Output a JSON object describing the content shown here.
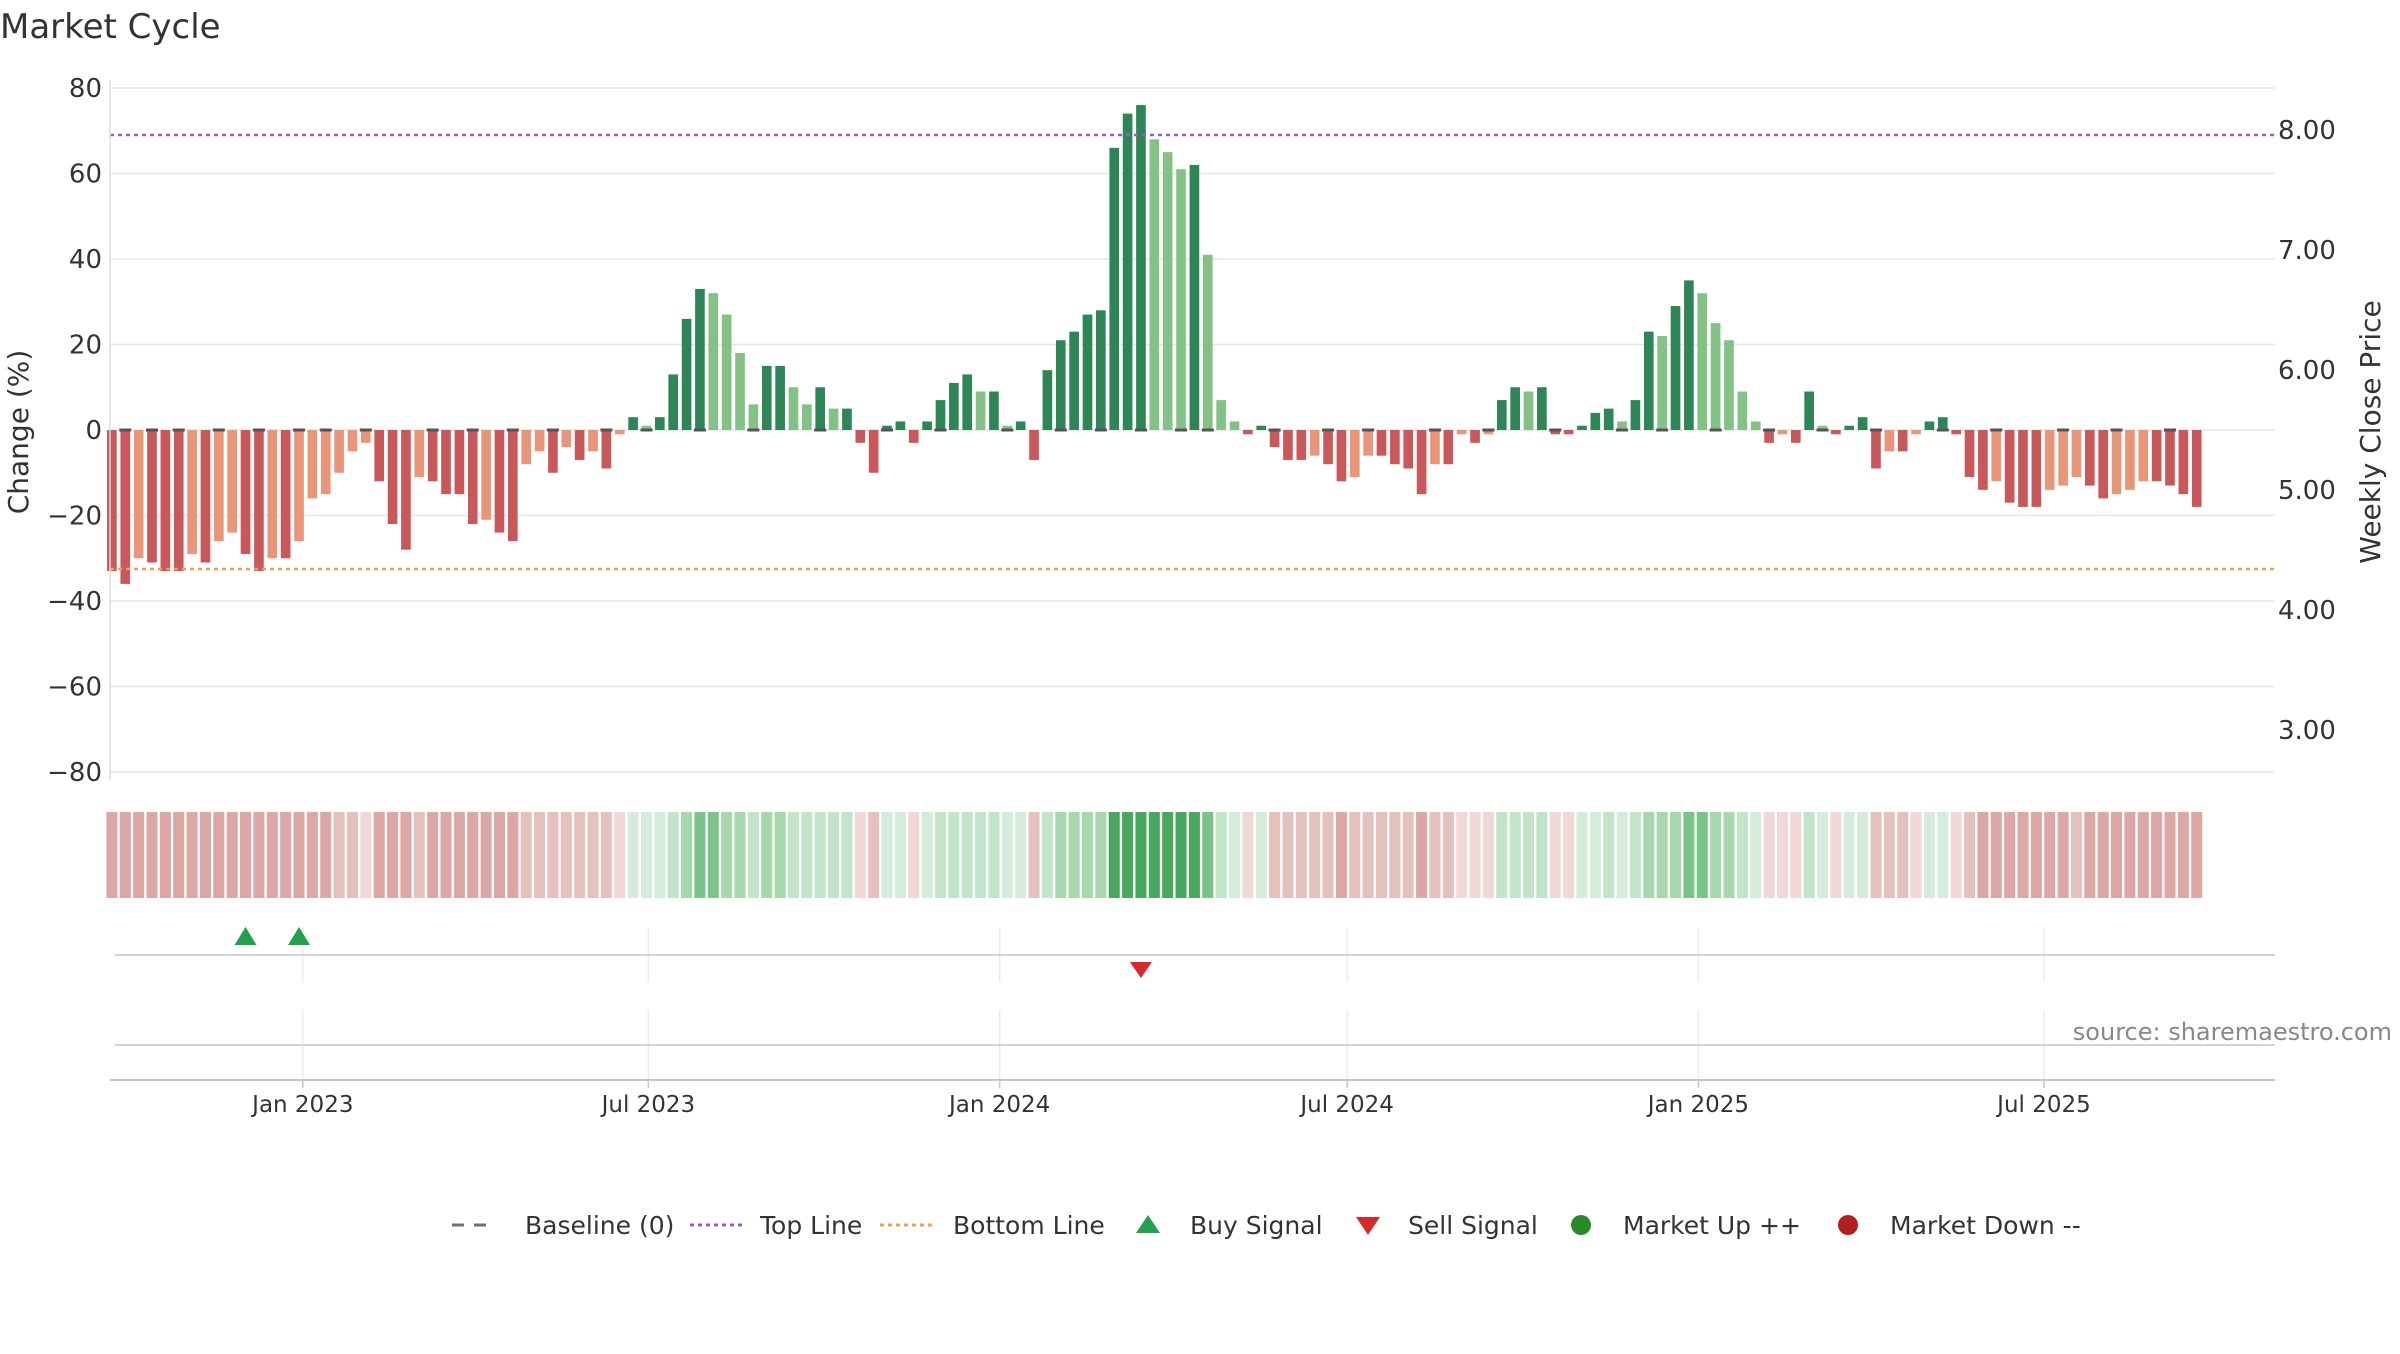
{
  "chart_data": {
    "type": "bar",
    "title": "Market Cycle",
    "ylabel": "Change (%)",
    "y2label": "Weekly Close Price",
    "ylim": [
      -80,
      80
    ],
    "yticks": [
      80,
      60,
      40,
      20,
      0,
      -20,
      -40,
      -60,
      -80
    ],
    "ytick_labels": [
      "80",
      "60",
      "40",
      "20",
      "0",
      "−20",
      "−40",
      "−60",
      "−80"
    ],
    "y2lim": [
      2.65,
      8.35
    ],
    "y2ticks": [
      8.0,
      7.0,
      6.0,
      5.0,
      4.0,
      3.0
    ],
    "y2tick_labels": [
      "8.00",
      "7.00",
      "6.00",
      "5.00",
      "4.00",
      "3.00"
    ],
    "xlim": [
      "2022-09-22",
      "2025-10-30"
    ],
    "xticks": [
      "2023-01-01",
      "2023-07-01",
      "2024-01-01",
      "2024-07-01",
      "2025-01-01",
      "2025-07-01"
    ],
    "xtick_labels": [
      "Jan 2023",
      "Jul 2023",
      "Jan 2024",
      "Jul 2024",
      "Jan 2025",
      "Jul 2025"
    ],
    "first_week": "2022-09-23",
    "week_step_days": 7,
    "values": [
      -33,
      -36,
      -30,
      -31,
      -33,
      -33,
      -29,
      -31,
      -26,
      -24,
      -29,
      -33,
      -30,
      -30,
      -26,
      -16,
      -15,
      -10,
      -5,
      -3,
      -12,
      -22,
      -28,
      -11,
      -12,
      -15,
      -15,
      -22,
      -21,
      -24,
      -26,
      -8,
      -5,
      -10,
      -4,
      -7,
      -5,
      -9,
      -1,
      3,
      1,
      3,
      13,
      26,
      33,
      32,
      27,
      18,
      6,
      15,
      15,
      10,
      6,
      10,
      5,
      5,
      -3,
      -10,
      1,
      2,
      -3,
      2,
      7,
      11,
      13,
      9,
      9,
      1,
      2,
      -7,
      14,
      21,
      23,
      27,
      28,
      66,
      74,
      76,
      68,
      65,
      61,
      62,
      41,
      7,
      2,
      -1,
      1,
      -4,
      -7,
      -7,
      -6,
      -8,
      -12,
      -11,
      -6,
      -6,
      -8,
      -9,
      -15,
      -8,
      -8,
      -1,
      -3,
      -1,
      7,
      10,
      9,
      10,
      -1,
      -1,
      1,
      4,
      5,
      2,
      7,
      23,
      22,
      29,
      35,
      32,
      25,
      21,
      9,
      2,
      -3,
      -1,
      -3,
      9,
      1,
      -1,
      1,
      3,
      -9,
      -5,
      -5,
      -1,
      2,
      3,
      -1,
      -11,
      -14,
      -12,
      -17,
      -18,
      -18,
      -14,
      -13,
      -11,
      -13,
      -16,
      -15,
      -14,
      -12,
      -12,
      -13,
      -15,
      -18
    ],
    "dot_weeks": [
      1,
      3,
      5,
      8,
      11,
      14,
      16,
      19,
      24,
      27,
      30,
      33,
      37,
      40,
      44,
      48,
      53,
      58,
      62,
      67,
      71,
      74,
      77,
      80,
      82,
      87,
      91,
      94,
      99,
      103,
      108,
      113,
      116,
      120,
      124,
      128,
      132,
      137,
      141,
      146,
      150,
      154
    ],
    "bar_colors": {
      "strong_up": "#2e8555",
      "up": "#84c184",
      "strong_down": "#c9585b",
      "down": "#e8957a"
    },
    "heat_colors": {
      "down_strong": "#dca7a5",
      "down_mid": "#e5c1bd",
      "down_weak": "#efd8d6",
      "up_weak": "#d4ecd9",
      "up_light": "#c2e4c8",
      "up_mid": "#a6d7ad",
      "up_strong": "#7ac48a",
      "up_max": "#49a85e"
    },
    "top_line": 69,
    "bottom_line": -32.5,
    "buy_signals": [
      "2022-12-02",
      "2022-12-30"
    ],
    "sell_signals": [
      "2024-03-15"
    ],
    "series": [
      {
        "name": "Baseline (0)",
        "style": "dashed",
        "color": "#707070"
      },
      {
        "name": "Top Line",
        "style": "dotted",
        "color": "#9b59d0"
      },
      {
        "name": "Bottom Line",
        "style": "dotted",
        "color": "#f0a050"
      },
      {
        "name": "Buy Signal",
        "marker": "triangle-up",
        "color": "#22a04b"
      },
      {
        "name": "Sell Signal",
        "marker": "triangle-down",
        "color": "#d62a2a"
      },
      {
        "name": "Market Up ++",
        "marker": "circle",
        "color": "#2a8a2a"
      },
      {
        "name": "Market Down --",
        "marker": "circle",
        "color": "#b02020"
      }
    ],
    "legend_position": "bottom",
    "grid": true,
    "annotation": "source: sharemaestro.com"
  }
}
